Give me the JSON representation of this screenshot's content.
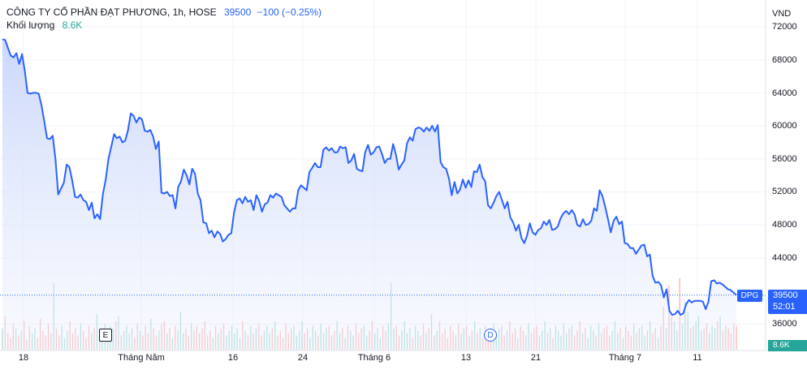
{
  "legend": {
    "title": "CÔNG TY CỔ PHẦN ĐẠT PHƯƠNG, 1h, HOSE",
    "price": "39500",
    "change": "−100 (−0.25%)",
    "volume_label": "Khối lượng",
    "volume_value": "8.6K"
  },
  "axis": {
    "unit": "VND",
    "y_ticks": [
      "72000",
      "68000",
      "64000",
      "60000",
      "56000",
      "52000",
      "48000",
      "44000",
      "36000"
    ],
    "x_ticks": [
      "18",
      "Tháng Năm",
      "16",
      "24",
      "Tháng 6",
      "13",
      "21",
      "Tháng 7",
      "11"
    ]
  },
  "badges": {
    "symbol": "DPG",
    "price": "39500",
    "countdown": "52:01",
    "volume": "8.6K"
  },
  "events": {
    "earnings": "E",
    "dividend": "D"
  },
  "colors": {
    "line": "#2962ff",
    "area_top": "#c9d6fb",
    "volume_up": "#26a69a",
    "volume_down": "#ef5350",
    "grid": "#f0f3fa"
  },
  "chart_data": {
    "type": "area",
    "ylim": [
      34000,
      73500
    ],
    "y_ticks": [
      72000,
      68000,
      64000,
      60000,
      56000,
      52000,
      48000,
      44000,
      36000
    ],
    "grid": true,
    "last_price": 39500,
    "price": [
      70500,
      70400,
      69400,
      68500,
      68300,
      68800,
      67500,
      68700,
      66700,
      64000,
      63900,
      64000,
      64000,
      63900,
      62500,
      60500,
      58500,
      58400,
      58800,
      56000,
      51700,
      52400,
      53100,
      55300,
      55000,
      53400,
      51400,
      51300,
      51700,
      51000,
      50800,
      49800,
      50700,
      48800,
      49300,
      48700,
      51700,
      53500,
      56000,
      57500,
      59000,
      58500,
      58700,
      58000,
      58200,
      59500,
      61500,
      61200,
      60400,
      61000,
      60800,
      59400,
      59300,
      59500,
      58700,
      57200,
      58100,
      51900,
      51800,
      52000,
      51500,
      51600,
      50000,
      52600,
      53300,
      54700,
      54000,
      52900,
      54800,
      54200,
      51800,
      51000,
      48300,
      48200,
      47000,
      47300,
      46500,
      47200,
      46900,
      46000,
      46300,
      46800,
      47000,
      49500,
      51000,
      51200,
      50600,
      51400,
      50800,
      51000,
      49800,
      51600,
      50900,
      49600,
      50500,
      50700,
      51600,
      51300,
      51800,
      51600,
      51400,
      50400,
      50000,
      49600,
      50000,
      50000,
      52200,
      52800,
      52500,
      52200,
      54400,
      54900,
      55500,
      55000,
      55000,
      57100,
      57400,
      57000,
      57300,
      56800,
      56800,
      57500,
      57300,
      57400,
      55500,
      55800,
      56600,
      54800,
      54600,
      54500,
      56800,
      57700,
      56500,
      56800,
      57400,
      57500,
      56600,
      55500,
      56000,
      56000,
      57800,
      56500,
      54700,
      55300,
      55800,
      57900,
      58600,
      58200,
      59600,
      59800,
      59700,
      59300,
      59800,
      59400,
      60000,
      59300,
      60100,
      55600,
      55000,
      54800,
      53600,
      51600,
      53200,
      51800,
      52300,
      53500,
      52500,
      53400,
      52600,
      54500,
      54400,
      55300,
      53800,
      53300,
      50400,
      50000,
      50700,
      51500,
      52000,
      51000,
      50000,
      50800,
      48900,
      48300,
      47300,
      48000,
      46400,
      45800,
      46700,
      48200,
      47100,
      46800,
      47400,
      47600,
      48400,
      48000,
      48600,
      47400,
      47500,
      47800,
      48800,
      49400,
      49700,
      49300,
      49800,
      49300,
      48000,
      47800,
      48700,
      48000,
      48100,
      48500,
      50000,
      49700,
      52200,
      51500,
      50200,
      48700,
      47100,
      48500,
      49000,
      48100,
      48400,
      45800,
      45700,
      45200,
      45200,
      44500,
      45000,
      45500,
      45600,
      44200,
      44400,
      41800,
      41000,
      41100,
      40700,
      39200,
      40200,
      37600,
      37100,
      37200,
      37600,
      37100,
      37300,
      38400,
      38900,
      38600,
      38800,
      38800,
      38800,
      38700,
      37800,
      38700,
      41200,
      41300,
      40900,
      41000,
      40800,
      40500,
      40200,
      40100,
      39800,
      39500
    ],
    "volume": [
      9,
      14,
      7,
      5,
      11,
      9,
      6,
      8,
      12,
      4,
      10,
      7,
      9,
      5,
      13,
      8,
      6,
      11,
      7,
      28,
      9,
      6,
      10,
      5,
      8,
      12,
      7,
      9,
      6,
      11,
      8,
      5,
      10,
      7,
      9,
      15,
      6,
      8,
      11,
      7,
      10,
      9,
      12,
      14,
      6,
      8,
      10,
      7,
      9,
      5,
      11,
      8,
      6,
      10,
      7,
      13,
      9,
      6,
      8,
      11,
      12,
      7,
      9,
      5,
      10,
      8,
      16,
      7,
      9,
      6,
      11,
      8,
      10,
      7,
      9,
      12,
      6,
      8,
      5,
      10,
      7,
      9,
      11,
      6,
      8,
      10,
      7,
      9,
      5,
      12,
      8,
      6,
      10,
      7,
      9,
      11,
      6,
      8,
      10,
      7,
      9,
      12,
      6,
      8,
      5,
      11,
      7,
      9,
      10,
      6,
      8,
      12,
      7,
      9,
      5,
      10,
      8,
      6,
      11,
      7,
      9,
      10,
      6,
      8,
      12,
      7,
      9,
      5,
      10,
      8,
      6,
      11,
      7,
      9,
      10,
      6,
      8,
      12,
      7,
      9,
      5,
      10,
      8,
      11,
      28,
      9,
      10,
      6,
      8,
      12,
      7,
      9,
      5,
      10,
      8,
      6,
      11,
      7,
      9,
      15,
      6,
      8,
      12,
      7,
      9,
      5,
      10,
      8,
      6,
      11,
      7,
      9,
      10,
      6,
      8,
      12,
      7,
      9,
      5,
      10,
      8,
      6,
      11,
      7,
      9,
      10,
      6,
      8,
      12,
      7,
      9,
      5,
      10,
      8,
      6,
      11,
      7,
      9,
      10,
      6,
      8,
      12,
      7,
      9,
      5,
      10,
      8,
      6,
      11,
      7,
      9,
      10,
      6,
      8,
      12,
      7,
      9,
      5,
      10,
      8,
      6,
      11,
      7,
      9,
      10,
      6,
      8,
      12,
      7,
      9,
      5,
      10,
      8,
      6,
      11,
      7,
      9,
      10,
      6,
      8,
      12,
      7,
      9,
      5,
      10,
      18,
      9,
      27,
      14,
      12,
      8,
      30,
      11,
      20,
      16,
      9,
      10,
      12,
      14,
      8,
      9,
      11,
      7,
      10,
      9,
      12,
      14,
      8,
      10,
      9,
      7,
      11,
      10
    ]
  }
}
